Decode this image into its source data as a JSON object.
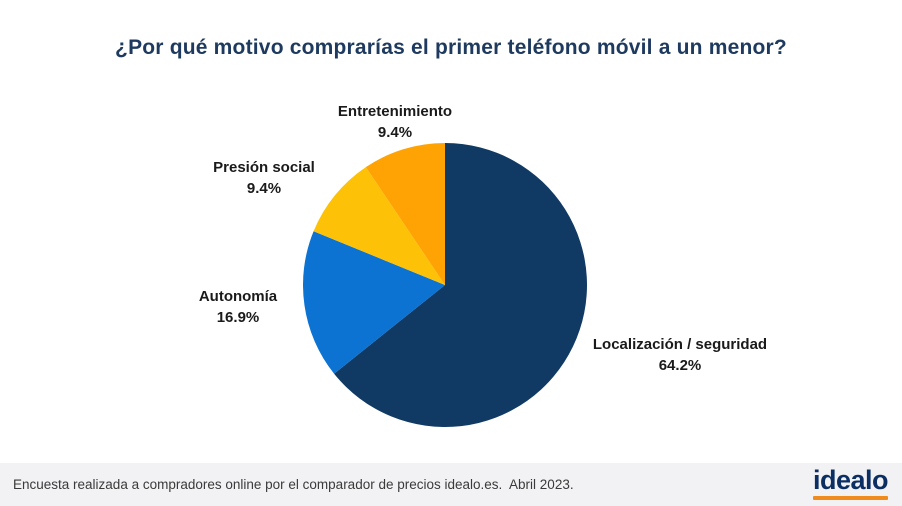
{
  "page": {
    "title": "¿Por qué motivo comprarías el primer teléfono móvil a un menor?"
  },
  "chart_data": {
    "type": "pie",
    "title": "¿Por qué motivo comprarías el primer teléfono móvil a un menor?",
    "start_angle_deg": 0,
    "direction": "clockwise",
    "legend_position": "outside-labels",
    "segments": [
      {
        "label": "Localización / seguridad",
        "value": 64.2,
        "pct_label": "64.2%",
        "color": "#103a63"
      },
      {
        "label": "Autonomía",
        "value": 16.9,
        "pct_label": "16.9%",
        "color": "#0c73d2"
      },
      {
        "label": "Presión social",
        "value": 9.4,
        "pct_label": "9.4%",
        "color": "#fdc107"
      },
      {
        "label": "Entretenimiento",
        "value": 9.4,
        "pct_label": "9.4%",
        "color": "#fea303"
      }
    ]
  },
  "footer": {
    "caption": "Encuesta realizada a compradores online por el comparador de precios idealo.es.  Abril 2023.",
    "logo_text": "idealo",
    "logo_color": "#0b2e63",
    "logo_underline_color": "#f08c1e"
  }
}
